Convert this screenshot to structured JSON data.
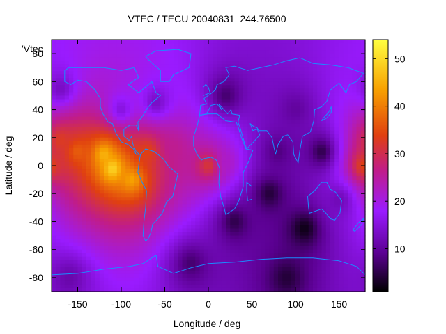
{
  "chart_data": {
    "type": "heatmap",
    "title": "VTEC / TECU 20040831_244.76500",
    "xlabel": "Longitude / deg",
    "ylabel": "Latitude / deg",
    "key_label": "'Vtec_",
    "xlim": [
      -180,
      180
    ],
    "ylim": [
      -90,
      90
    ],
    "x_ticks": [
      -150,
      -100,
      -50,
      0,
      50,
      100,
      150
    ],
    "y_ticks": [
      -80,
      -60,
      -40,
      -20,
      0,
      20,
      40,
      60,
      80
    ],
    "colorbar": {
      "min": 1,
      "max": 54,
      "ticks": [
        10,
        20,
        30,
        40,
        50
      ]
    },
    "grid": false,
    "legend": "colorbar on right",
    "palette": [
      "#000000",
      "#5a0090",
      "#9a1bff",
      "#c01c8a",
      "#e04010",
      "#f7a000",
      "#ffff40"
    ],
    "coastline_color": "#1a8cff",
    "features": [
      {
        "lon": -110,
        "lat": -2,
        "value": 50
      },
      {
        "lon": -120,
        "lat": 8,
        "value": 46
      },
      {
        "lon": -88,
        "lat": -10,
        "value": 44
      },
      {
        "lon": -150,
        "lat": 10,
        "value": 37
      },
      {
        "lon": -170,
        "lat": 18,
        "value": 33
      },
      {
        "lon": -70,
        "lat": 10,
        "value": 34
      },
      {
        "lon": -40,
        "lat": 12,
        "value": 26
      },
      {
        "lon": 0,
        "lat": 0,
        "value": 32
      },
      {
        "lon": 20,
        "lat": 2,
        "value": 22
      },
      {
        "lon": 178,
        "lat": 0,
        "value": 34
      },
      {
        "lon": -100,
        "lat": 40,
        "value": 15
      },
      {
        "lon": -60,
        "lat": 45,
        "value": 13
      },
      {
        "lon": -170,
        "lat": 55,
        "value": 13
      },
      {
        "lon": 150,
        "lat": -25,
        "value": 12
      },
      {
        "lon": 100,
        "lat": 40,
        "value": 10
      },
      {
        "lon": 70,
        "lat": -20,
        "value": 4
      },
      {
        "lon": 110,
        "lat": -45,
        "value": 2
      },
      {
        "lon": 30,
        "lat": -40,
        "value": 5
      },
      {
        "lon": 130,
        "lat": 10,
        "value": 5
      },
      {
        "lon": 20,
        "lat": 50,
        "value": 7
      },
      {
        "lon": 80,
        "lat": 10,
        "value": 8
      },
      {
        "lon": -20,
        "lat": -70,
        "value": 7
      },
      {
        "lon": 90,
        "lat": -80,
        "value": 4
      },
      {
        "lon": -160,
        "lat": -80,
        "value": 11
      }
    ],
    "base_value": 9
  }
}
